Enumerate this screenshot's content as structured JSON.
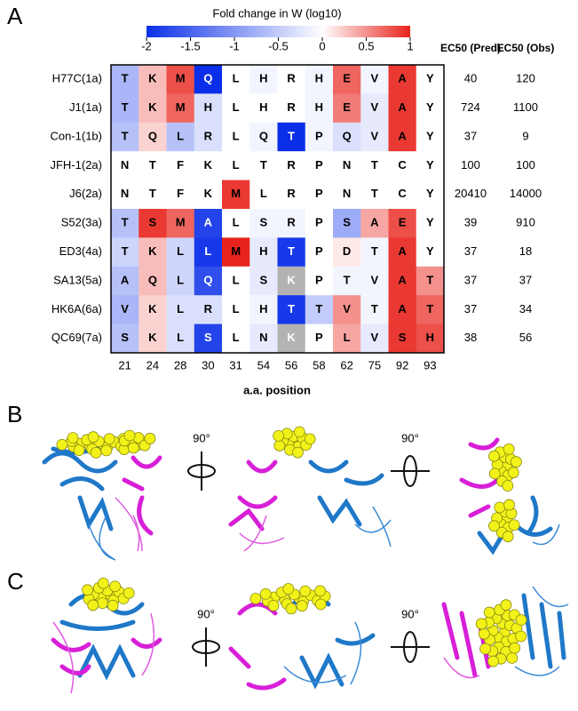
{
  "panel_labels": [
    "A",
    "B",
    "C"
  ],
  "rotation_labels": [
    "90°",
    "90°",
    "90°",
    "90°"
  ],
  "chart_data": {
    "type": "heatmap",
    "title": "Fold change in W (log10)",
    "xlabel": "a.a. position",
    "clim": [
      -2,
      1
    ],
    "cticks": [
      -2,
      -1.5,
      -1,
      -0.5,
      0,
      0.5,
      1
    ],
    "cmap": [
      "#0b2fe8",
      "#ffffff",
      "#e8231b"
    ],
    "missing_color": "#b3b3b3",
    "columns": [
      "21",
      "24",
      "28",
      "30",
      "31",
      "54",
      "56",
      "58",
      "62",
      "75",
      "92",
      "93"
    ],
    "rows": [
      "H77C(1a)",
      "J1(1a)",
      "Con-1(1b)",
      "JFH-1(2a)",
      "J6(2a)",
      "S52(3a)",
      "ED3(4a)",
      "SA13(5a)",
      "HK6A(6a)",
      "QC69(7a)"
    ],
    "letters": [
      [
        "T",
        "K",
        "M",
        "Q",
        "L",
        "H",
        "R",
        "H",
        "E",
        "V",
        "A",
        "Y"
      ],
      [
        "T",
        "K",
        "M",
        "H",
        "L",
        "H",
        "R",
        "H",
        "E",
        "V",
        "A",
        "Y"
      ],
      [
        "T",
        "Q",
        "L",
        "R",
        "L",
        "Q",
        "T",
        "P",
        "Q",
        "V",
        "A",
        "Y"
      ],
      [
        "N",
        "T",
        "F",
        "K",
        "L",
        "T",
        "R",
        "P",
        "N",
        "T",
        "C",
        "Y"
      ],
      [
        "N",
        "T",
        "F",
        "K",
        "M",
        "L",
        "R",
        "P",
        "N",
        "T",
        "C",
        "Y"
      ],
      [
        "T",
        "S",
        "M",
        "A",
        "L",
        "S",
        "R",
        "P",
        "S",
        "A",
        "E",
        "Y"
      ],
      [
        "T",
        "K",
        "L",
        "L",
        "M",
        "H",
        "T",
        "P",
        "D",
        "T",
        "A",
        "Y"
      ],
      [
        "A",
        "Q",
        "L",
        "Q",
        "L",
        "S",
        "K",
        "P",
        "T",
        "V",
        "A",
        "T"
      ],
      [
        "V",
        "K",
        "L",
        "R",
        "L",
        "H",
        "T",
        "T",
        "V",
        "T",
        "A",
        "T"
      ],
      [
        "S",
        "K",
        "L",
        "S",
        "L",
        "N",
        "K",
        "P",
        "L",
        "V",
        "S",
        "H"
      ]
    ],
    "values": [
      [
        -0.7,
        0.3,
        0.8,
        -2,
        0,
        -0.1,
        0,
        -0.1,
        0.7,
        -0.1,
        0.9,
        0
      ],
      [
        -0.7,
        0.3,
        0.7,
        -0.3,
        0,
        0,
        0,
        -0.1,
        0.6,
        -0.2,
        0.9,
        0
      ],
      [
        -0.6,
        0.2,
        -0.6,
        -0.3,
        0,
        -0.1,
        -2,
        -0.1,
        -0.3,
        -0.2,
        0.9,
        0
      ],
      [
        0,
        0,
        0,
        0,
        0,
        0,
        0,
        0,
        0,
        0,
        0,
        0
      ],
      [
        0,
        0,
        0,
        0,
        0.9,
        0,
        0,
        0,
        0,
        0,
        0,
        0
      ],
      [
        -0.6,
        0.9,
        0.7,
        -1.8,
        0,
        -0.1,
        -0.1,
        0,
        -0.8,
        0.4,
        0.8,
        0
      ],
      [
        -0.4,
        0.3,
        -0.4,
        -1.9,
        1,
        -0.2,
        -1.9,
        0,
        0.1,
        -0.1,
        0.9,
        0
      ],
      [
        -0.6,
        0.3,
        -0.4,
        -1.7,
        0,
        -0.2,
        null,
        0,
        -0.1,
        -0.1,
        0.9,
        0.5
      ],
      [
        -0.7,
        0.2,
        -0.3,
        -0.3,
        0,
        -0.1,
        -1.9,
        -0.5,
        0.5,
        -0.1,
        0.9,
        0.7
      ],
      [
        -0.6,
        0.2,
        -0.3,
        -1.8,
        0,
        -0.2,
        null,
        0,
        0.4,
        -0.2,
        0.9,
        0.8
      ]
    ],
    "ec50_headers": [
      "EC50 (Pred)",
      "EC50 (Obs)"
    ],
    "ec50_pred": [
      40,
      724,
      37,
      100,
      20410,
      39,
      37,
      37,
      37,
      38
    ],
    "ec50_obs": [
      120,
      1100,
      9,
      100,
      14000,
      910,
      18,
      37,
      34,
      56
    ]
  }
}
